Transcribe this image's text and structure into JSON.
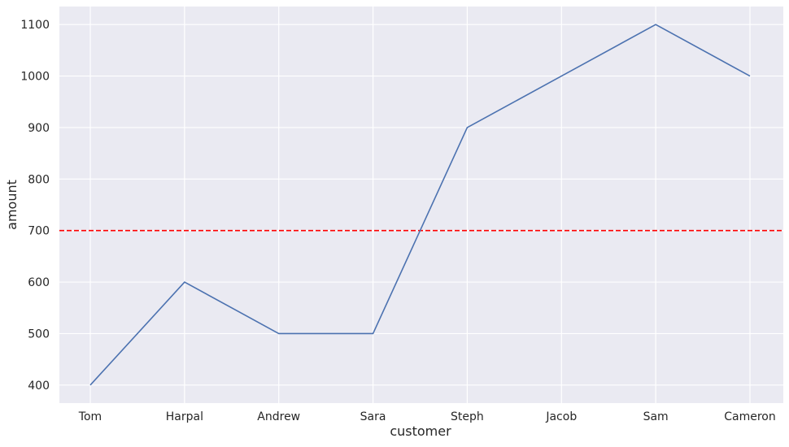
{
  "chart_data": {
    "type": "line",
    "categories": [
      "Tom",
      "Harpal",
      "Andrew",
      "Sara",
      "Steph",
      "Jacob",
      "Sam",
      "Cameron"
    ],
    "series": [
      {
        "values": [
          400,
          600,
          500,
          500,
          900,
          1000,
          1100,
          1000
        ],
        "color": "#4c72b0"
      }
    ],
    "reference_lines": [
      {
        "axis": "y",
        "value": 700,
        "style": "dashed",
        "color": "#ff0000"
      }
    ],
    "xlabel": "customer",
    "ylabel": "amount",
    "ylim": [
      365,
      1135
    ],
    "yticks": [
      400,
      500,
      600,
      700,
      800,
      900,
      1000,
      1100
    ],
    "grid": true,
    "background": "#eaeaf2",
    "grid_color": "#ffffff"
  }
}
